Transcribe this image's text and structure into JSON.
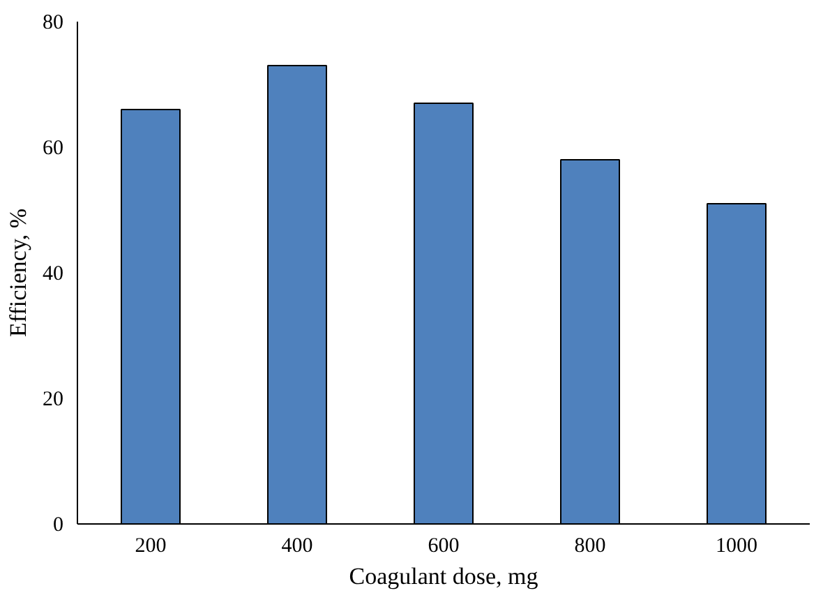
{
  "chart_data": {
    "type": "bar",
    "xlabel": "Coagulant dose, mg",
    "ylabel": "Efficiency, %",
    "categories": [
      "200",
      "400",
      "600",
      "800",
      "1000"
    ],
    "values": [
      66,
      73,
      67,
      58,
      51
    ],
    "color": "#4f81bd",
    "ylim": [
      0,
      80
    ],
    "yticks": [
      0,
      20,
      40,
      60,
      80
    ],
    "grid": false
  }
}
